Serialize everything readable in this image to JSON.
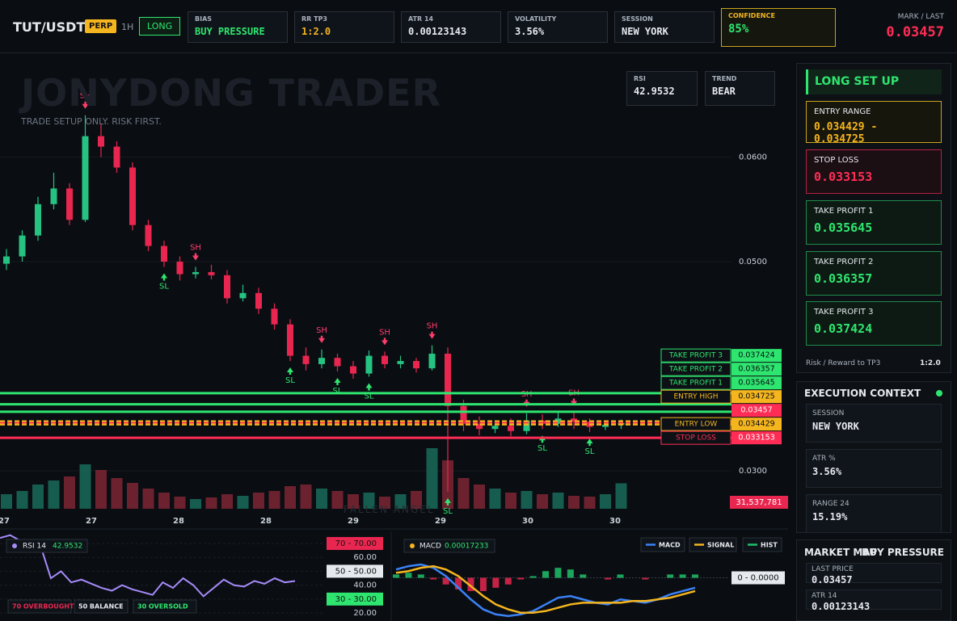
{
  "topbar": {
    "pair": "TUT/USDT",
    "market": "PERP",
    "timeframe": "1H",
    "side": "LONG",
    "cards": [
      {
        "label": "BIAS",
        "value": "BUY PRESSURE"
      },
      {
        "label": "RR TP3",
        "value": "1:2.0"
      },
      {
        "label": "ATR 14",
        "value": "0.00123143"
      },
      {
        "label": "VOLATILITY",
        "value": "3.56%"
      },
      {
        "label": "SESSION",
        "value": "NEW YORK"
      },
      {
        "label": "CONFIDENCE",
        "value": "85%"
      }
    ],
    "mark_label": "MARK / LAST",
    "mark_value": "0.03457"
  },
  "watermark": {
    "title": "JONYDONG TRADER",
    "subtitle": "TRADE SETUP ONLY. RISK FIRST.",
    "footer": "FALLEN ANGEL"
  },
  "badges": [
    {
      "label": "RSI",
      "value": "42.9532"
    },
    {
      "label": "TREND",
      "value": "BEAR"
    }
  ],
  "chart_data": [
    {
      "type": "candlestick",
      "x_labels": [
        "27",
        "27",
        "28",
        "28",
        "29",
        "29",
        "30",
        "30"
      ],
      "open": [
        0.0498,
        0.0505,
        0.0525,
        0.0555,
        0.057,
        0.054,
        0.062,
        0.061,
        0.059,
        0.0535,
        0.0515,
        0.05,
        0.0488,
        0.049,
        0.0487,
        0.0465,
        0.047,
        0.0455,
        0.044,
        0.041,
        0.0402,
        0.0408,
        0.04,
        0.0393,
        0.041,
        0.0402,
        0.0405,
        0.0398,
        0.0412,
        0.0362,
        0.0345,
        0.034,
        0.0343,
        0.0338,
        0.0348,
        0.0345,
        0.035,
        0.0347,
        0.0342,
        0.0344
      ],
      "high": [
        0.0512,
        0.053,
        0.0562,
        0.0585,
        0.0575,
        0.064,
        0.0632,
        0.0615,
        0.0595,
        0.054,
        0.052,
        0.0505,
        0.0495,
        0.0497,
        0.0492,
        0.0478,
        0.0475,
        0.046,
        0.0445,
        0.0418,
        0.0416,
        0.0412,
        0.0405,
        0.0415,
        0.0414,
        0.041,
        0.0408,
        0.042,
        0.0418,
        0.0368,
        0.0352,
        0.0348,
        0.035,
        0.0355,
        0.0354,
        0.0357,
        0.0356,
        0.035,
        0.0348,
        0.0349
      ],
      "low": [
        0.0492,
        0.05,
        0.052,
        0.055,
        0.0535,
        0.0538,
        0.06,
        0.0585,
        0.053,
        0.051,
        0.0495,
        0.0482,
        0.0484,
        0.0483,
        0.046,
        0.0462,
        0.045,
        0.0435,
        0.0405,
        0.0396,
        0.0398,
        0.0395,
        0.0388,
        0.039,
        0.0398,
        0.0398,
        0.0394,
        0.0396,
        0.028,
        0.0338,
        0.0334,
        0.0336,
        0.0333,
        0.0335,
        0.034,
        0.0342,
        0.034,
        0.0337,
        0.0339,
        0.034
      ],
      "close": [
        0.0505,
        0.0525,
        0.0555,
        0.057,
        0.054,
        0.062,
        0.061,
        0.059,
        0.0535,
        0.0515,
        0.05,
        0.0488,
        0.049,
        0.0487,
        0.0465,
        0.047,
        0.0455,
        0.044,
        0.041,
        0.0402,
        0.0408,
        0.04,
        0.0393,
        0.041,
        0.0402,
        0.0405,
        0.0398,
        0.0412,
        0.0362,
        0.0345,
        0.034,
        0.0343,
        0.0338,
        0.0348,
        0.0345,
        0.035,
        0.0347,
        0.0342,
        0.0344,
        0.03457
      ],
      "volume": [
        18000000,
        22000000,
        30000000,
        35000000,
        40000000,
        55000000,
        48000000,
        38000000,
        32000000,
        25000000,
        20000000,
        15000000,
        12000000,
        14000000,
        18000000,
        16000000,
        20000000,
        22000000,
        28000000,
        30000000,
        25000000,
        22000000,
        18000000,
        20000000,
        15000000,
        18000000,
        22000000,
        75000000,
        60000000,
        38000000,
        30000000,
        25000000,
        20000000,
        22000000,
        18000000,
        20000000,
        16000000,
        15000000,
        18000000,
        31537781
      ],
      "volume_label": "31,537,781",
      "ylim": [
        0.02637,
        0.06977
      ],
      "yticks": [
        {
          "value": 0.03,
          "label": "0.0300"
        },
        {
          "value": 0.05,
          "label": "0.0500"
        },
        {
          "value": 0.06,
          "label": "0.0600"
        }
      ],
      "levels": [
        {
          "name": "TAKE PROFIT 3",
          "value": 0.037424,
          "color": "#2ee66f",
          "style": "solid"
        },
        {
          "name": "TAKE PROFIT 2",
          "value": 0.036357,
          "color": "#2ee66f",
          "style": "solid"
        },
        {
          "name": "TAKE PROFIT 1",
          "value": 0.035645,
          "color": "#2ee66f",
          "style": "solid"
        },
        {
          "name": "ENTRY HIGH",
          "value": 0.034725,
          "color": "#f5b51e",
          "style": "dashed"
        },
        {
          "value": 0.03457,
          "color": "#ff2d55",
          "style": "dashed"
        },
        {
          "name": "ENTRY LOW",
          "value": 0.034429,
          "color": "#f5b51e",
          "style": "dashed"
        },
        {
          "name": "STOP LOSS",
          "value": 0.033153,
          "color": "#ff2d55",
          "style": "solid"
        }
      ],
      "markers": [
        {
          "label": "SH",
          "candle": 5
        },
        {
          "label": "SH",
          "candle": 12
        },
        {
          "label": "SH",
          "candle": 20
        },
        {
          "label": "SH",
          "candle": 24
        },
        {
          "label": "SH",
          "candle": 27
        },
        {
          "label": "SH",
          "candle": 33
        },
        {
          "label": "SH",
          "candle": 36
        },
        {
          "label": "SL",
          "candle": 10
        },
        {
          "label": "SL",
          "candle": 18
        },
        {
          "label": "SL",
          "candle": 21
        },
        {
          "label": "SL",
          "candle": 23
        },
        {
          "label": "SL",
          "candle": 28
        },
        {
          "label": "SL",
          "candle": 34
        },
        {
          "label": "SL",
          "candle": 37
        }
      ]
    },
    {
      "type": "line",
      "title": "RSI 14",
      "value_label": "42.9532",
      "color": "#a78bfa",
      "values": [
        74,
        76,
        72,
        70,
        68,
        45,
        50,
        42,
        44,
        41,
        38,
        36,
        40,
        37,
        35,
        33,
        42,
        38,
        45,
        40,
        32,
        38,
        44,
        40,
        39,
        43,
        41,
        45,
        42,
        43
      ],
      "ylim": [
        14.2,
        76.4
      ],
      "yticks": [
        {
          "value": 20,
          "label": "20.00"
        },
        {
          "value": 30,
          "label": "30 - 30.00"
        },
        {
          "value": 40,
          "label": "40.00"
        },
        {
          "value": 50,
          "label": "50 - 50.00"
        },
        {
          "value": 60,
          "label": "60.00"
        },
        {
          "value": 70,
          "label": "70 - 70.00"
        }
      ],
      "legend": [
        "70 OVERBOUGHT",
        "50 BALANCE",
        "30 OVERSOLD"
      ]
    },
    {
      "type": "macd",
      "title": "MACD",
      "value_label": "0.00017233",
      "series": [
        {
          "name": "MACD",
          "color": "#3b82f6",
          "values": [
            0.0005,
            0.0007,
            0.0008,
            0.0006,
            0.0001,
            -0.0006,
            -0.0013,
            -0.0019,
            -0.0022,
            -0.0023,
            -0.0022,
            -0.002,
            -0.0016,
            -0.0012,
            -0.0011,
            -0.0013,
            -0.0015,
            -0.0016,
            -0.0013,
            -0.0014,
            -0.0015,
            -0.0013,
            -0.001,
            -0.0008,
            -0.0006
          ]
        },
        {
          "name": "SIGNAL",
          "color": "#f5b51e",
          "values": [
            0.0003,
            0.0004,
            0.0006,
            0.0007,
            0.0005,
            0.0001,
            -0.0005,
            -0.0011,
            -0.0016,
            -0.0019,
            -0.0021,
            -0.0021,
            -0.002,
            -0.0018,
            -0.0016,
            -0.0015,
            -0.0015,
            -0.0015,
            -0.0015,
            -0.0014,
            -0.0014,
            -0.0013,
            -0.0012,
            -0.001,
            -0.0008
          ]
        },
        {
          "name": "HIST",
          "color": "#1fbf6a",
          "values": [
            0.0002,
            0.0003,
            0.0002,
            -0.0001,
            -0.0004,
            -0.0007,
            -0.0008,
            -0.0008,
            -0.0006,
            -0.0004,
            -0.0001,
            0.0001,
            0.0004,
            0.0006,
            0.0005,
            0.0002,
            0,
            -0.0001,
            0.0002,
            0,
            -0.0001,
            0,
            0.0002,
            0.0002,
            0.0002
          ]
        }
      ],
      "ylim": [
        -0.0026,
        0.0026
      ],
      "yticks": [
        {
          "value": 0,
          "label": "0 - 0.0000"
        }
      ]
    }
  ],
  "setup": {
    "title": "LONG SET UP",
    "items": [
      {
        "label": "ENTRY RANGE",
        "value": "0.034429 - 0.034725"
      },
      {
        "label": "STOP LOSS",
        "value": "0.033153"
      },
      {
        "label": "TAKE PROFIT 1",
        "value": "0.035645"
      },
      {
        "label": "TAKE PROFIT 2",
        "value": "0.036357"
      },
      {
        "label": "TAKE PROFIT 3",
        "value": "0.037424"
      }
    ],
    "rr_label": "Risk / Reward to TP3",
    "rr_value": "1:2.0"
  },
  "context": {
    "title": "EXECUTION CONTEXT",
    "items": [
      {
        "label": "SESSION",
        "value": "NEW YORK"
      },
      {
        "label": "ATR %",
        "value": "3.56%"
      },
      {
        "label": "RANGE 24",
        "value": "15.19%"
      }
    ]
  },
  "market_map": {
    "title": "MARKET MAP",
    "bias": "BUY PRESSURE",
    "items": [
      {
        "label": "LAST PRICE",
        "value": "0.03457"
      },
      {
        "label": "ATR 14",
        "value": "0.00123143"
      }
    ]
  }
}
